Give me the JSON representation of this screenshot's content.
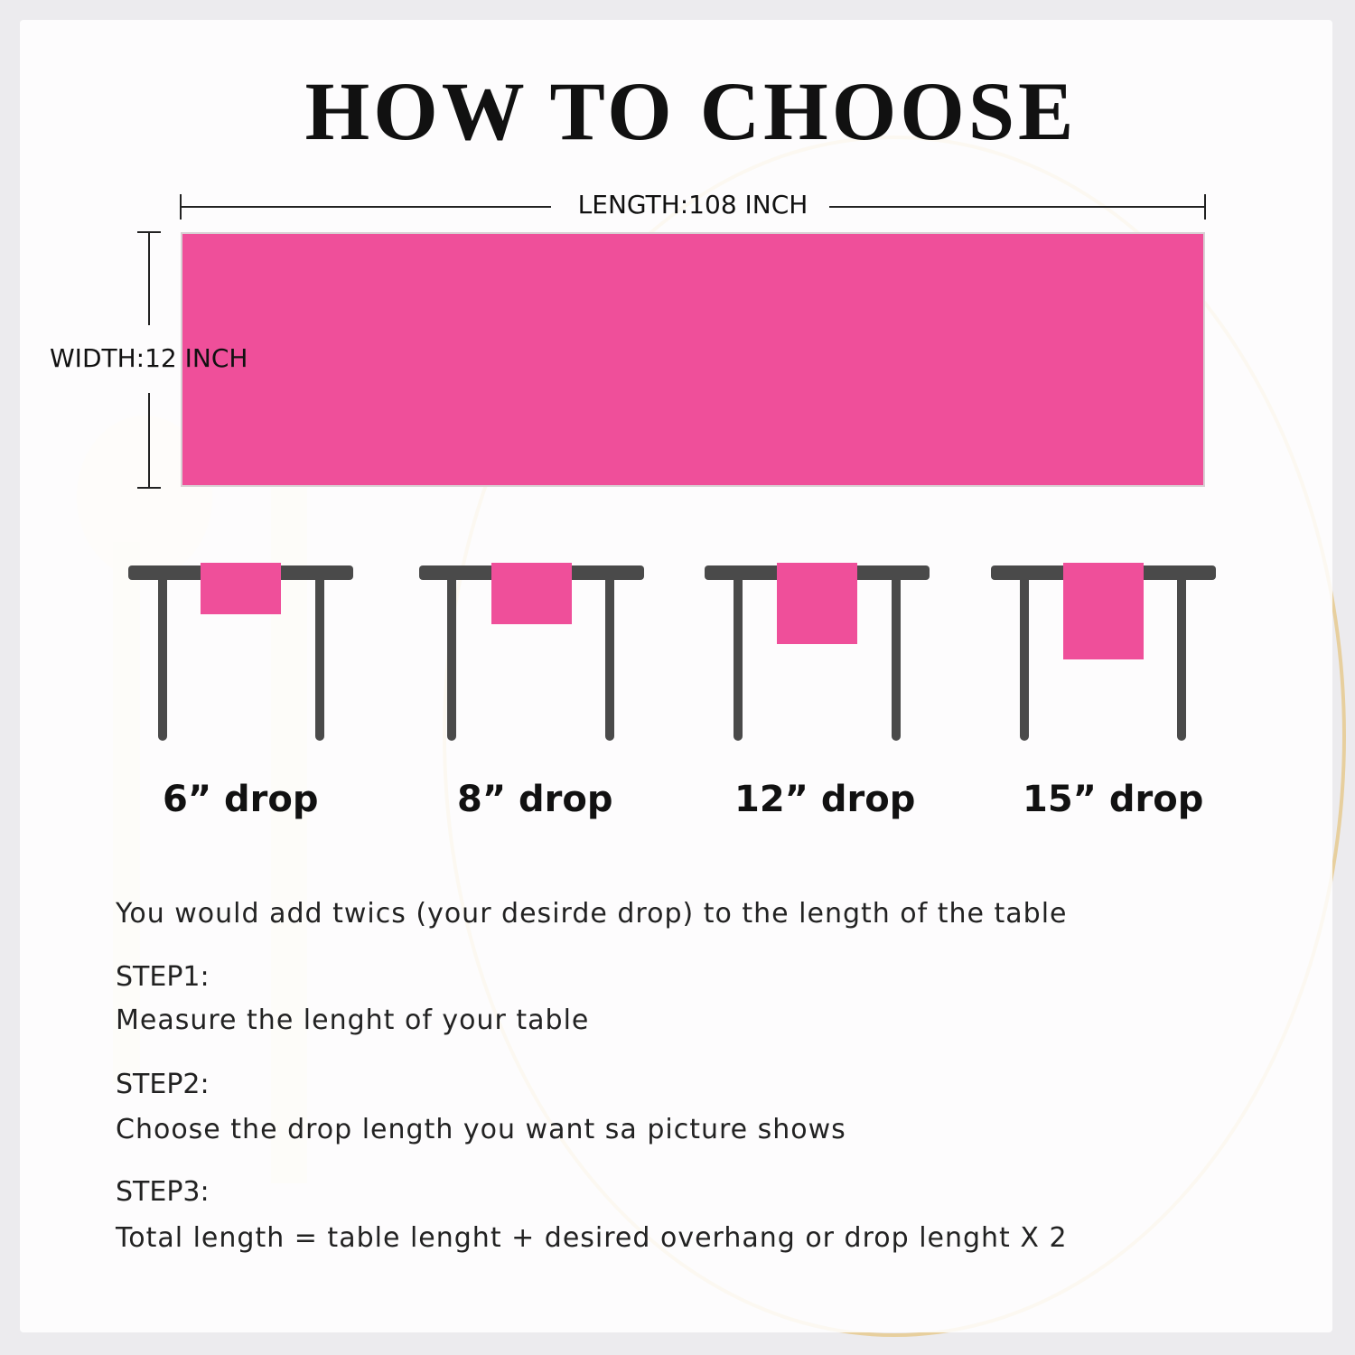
{
  "title": "HOW TO CHOOSE",
  "dimensions": {
    "length_label": "LENGTH:108 INCH",
    "width_label": "WIDTH:12 INCH"
  },
  "colors": {
    "runner": "#ef4f9a",
    "table": "#4a4a4a"
  },
  "drops": [
    {
      "label": "6” drop",
      "inches": 6
    },
    {
      "label": "8” drop",
      "inches": 8
    },
    {
      "label": "12” drop",
      "inches": 12
    },
    {
      "label": "15” drop",
      "inches": 15
    }
  ],
  "instructions": {
    "intro": "You would add twics (your desirde drop) to the length of the table",
    "step1_title": "STEP1:",
    "step1_text": "Measure the lenght of your table",
    "step2_title": "STEP2:",
    "step2_text": "Choose the drop length you want sa picture shows",
    "step3_title": "STEP3:",
    "step3_text": "Total length = table lenght + desired overhang or drop lenght X 2"
  }
}
